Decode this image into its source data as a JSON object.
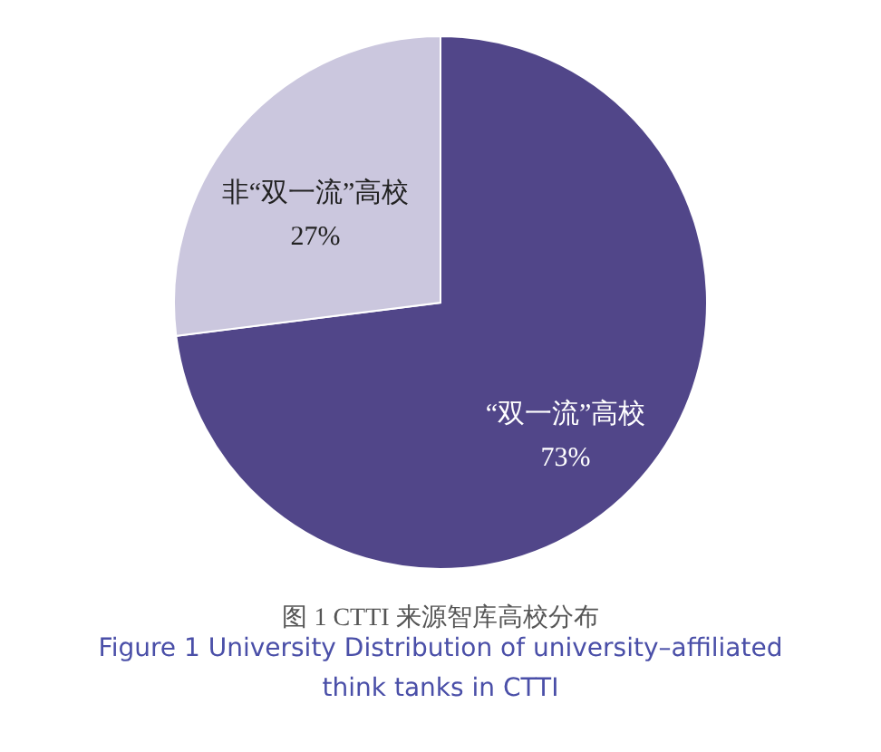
{
  "chart_data": {
    "type": "pie",
    "title": "图 1  CTTI 来源智库高校分布",
    "subtitle": "Figure 1  University Distribution of university–affiliated\nthink tanks in CTTI",
    "categories": [
      "“双一流”高校",
      "非“双一流”高校"
    ],
    "values": [
      73,
      27
    ],
    "value_labels": [
      "73%",
      "27%"
    ],
    "colors": [
      "#514689",
      "#cbc7de"
    ],
    "legend": false
  }
}
